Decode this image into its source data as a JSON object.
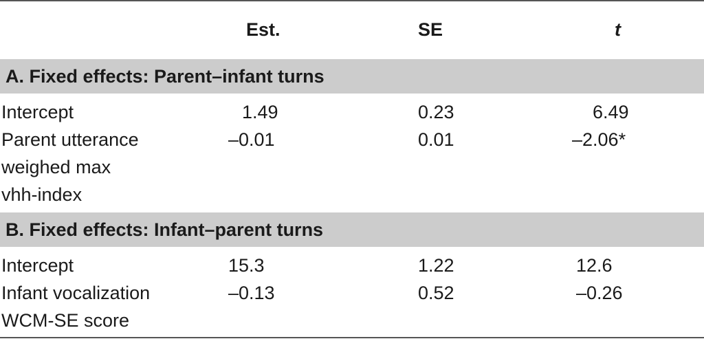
{
  "header": {
    "est": "Est.",
    "se": "SE",
    "t": "t"
  },
  "sections": [
    {
      "title": "A. Fixed effects: Parent–infant turns",
      "rows": [
        {
          "label_lines": [
            "Intercept"
          ],
          "est": "1.49",
          "se": "0.23",
          "t": "6.49"
        },
        {
          "label_lines": [
            "Parent utterance",
            "weighed max",
            "vhh-index"
          ],
          "est": "–0.01",
          "se": "0.01",
          "t": "–2.06*"
        }
      ]
    },
    {
      "title": "B. Fixed effects: Infant–parent turns",
      "rows": [
        {
          "label_lines": [
            "Intercept"
          ],
          "est": "15.3",
          "se": "1.22",
          "t": "12.6"
        },
        {
          "label_lines": [
            "Infant vocalization",
            "WCM-SE score"
          ],
          "est": "–0.13",
          "se": "0.52",
          "t": "–0.26"
        }
      ]
    }
  ]
}
